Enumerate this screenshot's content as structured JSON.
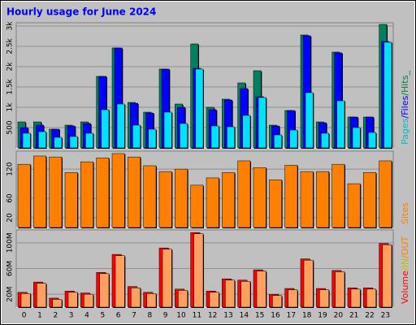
{
  "title": "Hourly usage for June 2024",
  "legend_separator": "/",
  "chart_data": [
    {
      "type": "grouped-bar",
      "legend": [
        {
          "text": "Pages",
          "color": "#00c0c0"
        },
        {
          "text": "Files",
          "color": "#0000ff"
        },
        {
          "text": "Hits_",
          "color": "#008040"
        }
      ],
      "series": [
        {
          "color": "#00805f",
          "values": [
            640,
            640,
            460,
            560,
            640,
            1760,
            2460,
            1120,
            880,
            1940,
            1080,
            2560,
            1000,
            1200,
            1600,
            1900,
            560,
            920,
            2780,
            640,
            2360,
            760,
            760,
            3040
          ]
        },
        {
          "color": "#0000ff",
          "values": [
            500,
            560,
            460,
            540,
            600,
            1760,
            2460,
            1100,
            860,
            1940,
            1000,
            1960,
            940,
            1180,
            1460,
            1260,
            540,
            920,
            2760,
            620,
            2340,
            760,
            760,
            2620
          ]
        },
        {
          "color": "#00e0ff",
          "values": [
            360,
            400,
            260,
            280,
            360,
            940,
            1080,
            560,
            460,
            880,
            600,
            1940,
            540,
            520,
            800,
            1240,
            320,
            440,
            1360,
            360,
            1160,
            500,
            380,
            2600
          ]
        }
      ],
      "ylim": [
        0,
        3080
      ],
      "yticks": [
        500,
        {
          "value": 1000,
          "label": "1k"
        },
        {
          "value": 1500,
          "label": "1.5k"
        },
        {
          "value": 2000,
          "label": "2k"
        },
        {
          "value": 2500,
          "label": "2.5k"
        },
        {
          "value": 3000,
          "label": "3k"
        }
      ]
    },
    {
      "type": "grouped-bar",
      "legend": [
        {
          "text": "Sites",
          "color": "#ff8000"
        }
      ],
      "series": [
        {
          "color": "#ff8000",
          "values": [
            130,
            147,
            145,
            113,
            135,
            143,
            152,
            145,
            127,
            115,
            120,
            87,
            102,
            113,
            137,
            123,
            98,
            128,
            115,
            115,
            130,
            90,
            113,
            137
          ]
        }
      ],
      "ylim": [
        0,
        157
      ],
      "yticks": [
        20,
        60,
        120
      ]
    },
    {
      "type": "grouped-bar",
      "legend": [
        {
          "text": "Volume",
          "color": "#ff0000"
        },
        {
          "text": "IN",
          "color": "#c0c000"
        },
        {
          "text": "OUT",
          "color": "#ff8000"
        }
      ],
      "series": [
        {
          "color": "#ff0000",
          "values": [
            23,
            39,
            14,
            25,
            22,
            54,
            82,
            32,
            23,
            92,
            28,
            116,
            25,
            44,
            42,
            58,
            20,
            29,
            75,
            29,
            57,
            30,
            30,
            99
          ]
        },
        {
          "color": "#ffa060",
          "values": [
            21,
            37,
            12,
            23,
            20,
            52,
            80,
            30,
            21,
            90,
            26,
            114,
            23,
            42,
            40,
            56,
            18,
            27,
            73,
            27,
            55,
            28,
            28,
            97
          ]
        }
      ],
      "ylim": [
        0,
        120
      ],
      "yticks": [
        {
          "value": 20,
          "label": "20M"
        },
        {
          "value": 60,
          "label": "60M"
        },
        {
          "value": 100,
          "label": "100M"
        }
      ],
      "categories": [
        "0",
        "1",
        "2",
        "3",
        "4",
        "5",
        "6",
        "7",
        "8",
        "9",
        "10",
        "11",
        "12",
        "13",
        "14",
        "15",
        "16",
        "17",
        "18",
        "19",
        "20",
        "21",
        "22",
        "23"
      ]
    }
  ]
}
